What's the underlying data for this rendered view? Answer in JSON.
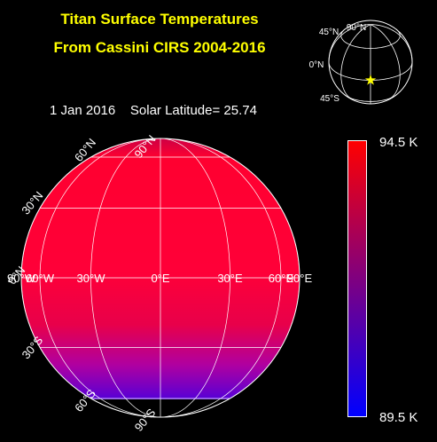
{
  "title": {
    "line1": "Titan Surface Temperatures",
    "line2": "From Cassini CIRS 2004-2016"
  },
  "info": {
    "date": "1 Jan 2016",
    "solar_latitude": "Solar Latitude= 25.74"
  },
  "colorbar": {
    "max_label": "94.5 K",
    "min_label": "89.5 K",
    "top_color": "#ff0000",
    "bottom_color": "#0000ff"
  },
  "globe": {
    "lon_labels": [
      "90°W",
      "60°W",
      "30°W",
      "0°E",
      "30°E",
      "60°E",
      "90°E"
    ],
    "lat_labels": [
      "90°N",
      "60°N",
      "30°N",
      "0°N",
      "30°S",
      "60°S",
      "90°S"
    ]
  },
  "inset": {
    "lat_labels": [
      "90°N",
      "45°N",
      "0°N",
      "45°S"
    ],
    "star_color": "#ffff00"
  }
}
